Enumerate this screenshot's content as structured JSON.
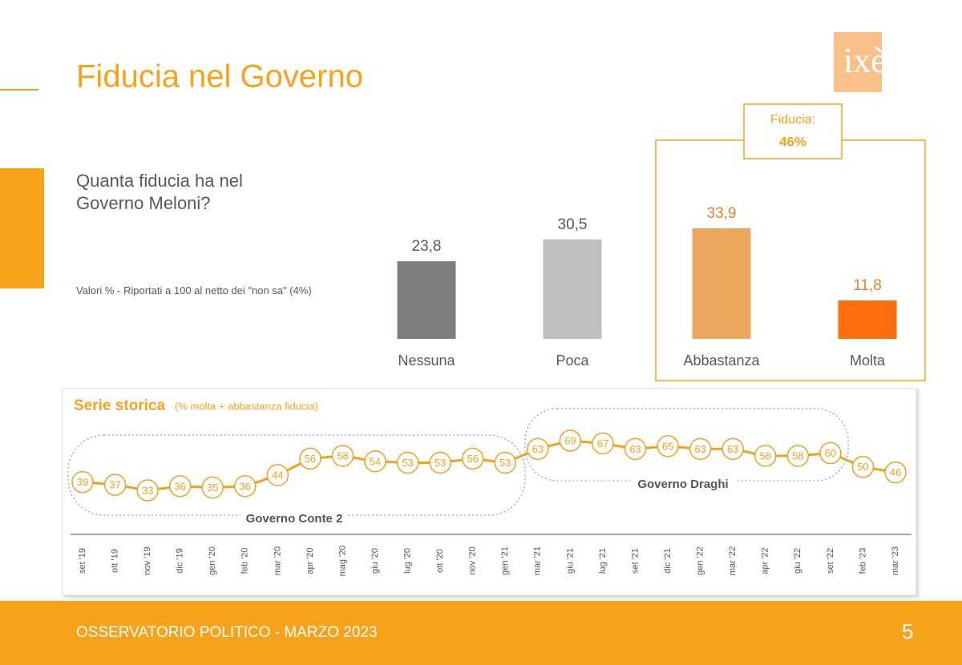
{
  "header": {
    "title": "Fiducia nel Governo",
    "logo": "ixè"
  },
  "chart_data": [
    {
      "type": "bar",
      "title": "Quanta fiducia ha nel Governo Meloni?",
      "subtitle": "Valori % - Riportati a 100 al netto dei \"non sa\" (4%)",
      "categories": [
        "Nessuna",
        "Poca",
        "Abbastanza",
        "Molta"
      ],
      "values": [
        23.8,
        30.5,
        33.9,
        11.8
      ],
      "value_labels": [
        "23,8",
        "30,5",
        "33,9",
        "11,8"
      ],
      "colors": [
        "#7f7f7f",
        "#bfbfbf",
        "#eda65d",
        "#ff6f0f"
      ],
      "label_colors": [
        "#595959",
        "#595959",
        "#ed7d31",
        "#ed7d31"
      ],
      "annotation": {
        "label": "Fiducia:",
        "value": 46,
        "value_label": "46%"
      }
    },
    {
      "type": "line",
      "title": "Serie storica",
      "subtitle": "(% molta + abbastanza fiducia)",
      "categories": [
        "set '19",
        "ott '19",
        "nov '19",
        "dic '19",
        "gen '20",
        "feb '20",
        "mar '20",
        "apr '20",
        "mag '20",
        "giu '20",
        "lug '20",
        "ott '20",
        "nov '20",
        "gen '21",
        "mar '21",
        "giu '21",
        "lug '21",
        "set '21",
        "dic '21",
        "gen '22",
        "mar '22",
        "apr '22",
        "giu '22",
        "set '22",
        "feb '23",
        "mar '23"
      ],
      "values": [
        39,
        37,
        33,
        36,
        35,
        36,
        44,
        56,
        58,
        54,
        53,
        53,
        56,
        53,
        63,
        69,
        67,
        63,
        65,
        63,
        63,
        58,
        58,
        60,
        50,
        46
      ],
      "color": "#f0a020",
      "annotations": [
        "Governo Conte 2",
        "Governo Draghi"
      ]
    }
  ],
  "footer": {
    "text": "OSSERVATORIO POLITICO - MARZO 2023",
    "page": "5"
  }
}
